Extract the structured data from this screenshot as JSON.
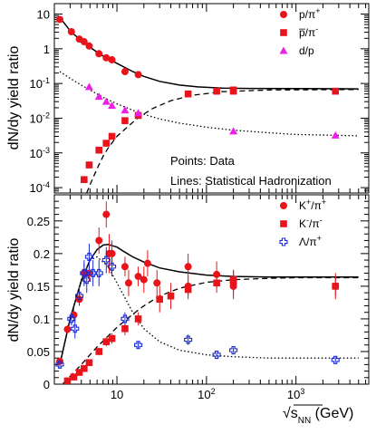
{
  "chart_data": [
    {
      "id": "top",
      "type": "scatter",
      "yscale": "log",
      "xscale": "log",
      "ylabel": "dN/dy yield ratio",
      "xlim": [
        2,
        6500
      ],
      "ylim": [
        7e-05,
        20
      ],
      "y_ticks": [
        {
          "value": 0.0001,
          "base": "10",
          "exp": "-4"
        },
        {
          "value": 0.001,
          "base": "10",
          "exp": "-3"
        },
        {
          "value": 0.01,
          "base": "10",
          "exp": "-2"
        },
        {
          "value": 0.1,
          "base": "10",
          "exp": "-1"
        },
        {
          "value": 1,
          "base": "1",
          "exp": ""
        },
        {
          "value": 10,
          "base": "10",
          "exp": ""
        }
      ],
      "legend": [
        {
          "label": "p/π",
          "sup": "+",
          "marker": "circle",
          "color": "#e8141b"
        },
        {
          "label": "p̅/π",
          "sup": "-",
          "marker": "square",
          "color": "#e8141b"
        },
        {
          "label": "d/p",
          "sup": "",
          "marker": "triangle",
          "color": "#ee1ee6"
        }
      ],
      "annotations": [
        "Points: Data",
        "Lines: Statistical Hadronization"
      ],
      "series": [
        {
          "name": "p/π+",
          "marker": "circle",
          "color": "#e8141b",
          "x": [
            2.3,
            3.1,
            3.8,
            4.3,
            4.9,
            6.3,
            7.6,
            8.8,
            12.3,
            17.3
          ],
          "y": [
            7.0,
            3.1,
            1.9,
            1.6,
            1.2,
            0.72,
            0.55,
            0.48,
            0.22,
            0.18
          ]
        },
        {
          "name": "p̅/π-",
          "marker": "square",
          "color": "#e8141b",
          "x": [
            4.3,
            4.9,
            6.3,
            7.6,
            8.8,
            12.3,
            17.3,
            62.4,
            130,
            200,
            200,
            2760
          ],
          "y": [
            0.00017,
            0.00045,
            0.0012,
            0.0019,
            0.003,
            0.0085,
            0.012,
            0.05,
            0.06,
            0.065,
            0.06,
            0.06
          ]
        },
        {
          "name": "d/p",
          "marker": "triangle",
          "color": "#ee1ee6",
          "x": [
            4.9,
            6.3,
            7.6,
            8.8,
            12.3,
            17.3,
            200,
            2760
          ],
          "y": [
            0.08,
            0.042,
            0.03,
            0.023,
            0.017,
            0.014,
            0.0042,
            0.0032
          ]
        }
      ],
      "curves": [
        {
          "name": "p/π+ model",
          "style": "solid",
          "x": [
            2.3,
            3,
            4,
            5,
            7,
            10,
            15,
            20,
            30,
            50,
            80,
            150,
            300,
            1000,
            5000
          ],
          "y": [
            8,
            3.3,
            1.7,
            1.1,
            0.62,
            0.38,
            0.22,
            0.16,
            0.115,
            0.09,
            0.08,
            0.074,
            0.072,
            0.071,
            0.07
          ]
        },
        {
          "name": "p̅/π- model",
          "style": "dashed",
          "x": [
            4.6,
            5,
            6,
            7,
            8,
            10,
            13,
            17,
            25,
            40,
            70,
            150,
            500,
            5000
          ],
          "y": [
            7e-05,
            0.00012,
            0.00035,
            0.0008,
            0.0014,
            0.003,
            0.0055,
            0.01,
            0.019,
            0.032,
            0.046,
            0.058,
            0.065,
            0.067
          ]
        },
        {
          "name": "d/p model",
          "style": "dotted",
          "x": [
            2.3,
            3,
            4,
            5,
            7,
            10,
            15,
            20,
            30,
            50,
            100,
            200,
            500,
            1000,
            5000
          ],
          "y": [
            0.22,
            0.14,
            0.09,
            0.065,
            0.04,
            0.026,
            0.017,
            0.013,
            0.0095,
            0.0072,
            0.0055,
            0.0045,
            0.0038,
            0.0034,
            0.0031
          ]
        }
      ]
    },
    {
      "id": "bottom",
      "type": "scatter",
      "yscale": "linear",
      "xscale": "log",
      "ylabel": "dN/dy yield ratio",
      "xlabel_parts": {
        "sqrt_symbol": "√",
        "s": "s",
        "sub": "NN",
        "unit": " (GeV)"
      },
      "xlim": [
        2,
        6500
      ],
      "ylim": [
        0,
        0.29
      ],
      "y_ticks": [
        {
          "value": 0,
          "label": "0"
        },
        {
          "value": 0.05,
          "label": "0.05"
        },
        {
          "value": 0.1,
          "label": "0.1"
        },
        {
          "value": 0.15,
          "label": "0.15"
        },
        {
          "value": 0.2,
          "label": "0.2"
        },
        {
          "value": 0.25,
          "label": "0.25"
        }
      ],
      "x_ticks": [
        {
          "value": 10,
          "base": "10",
          "exp": ""
        },
        {
          "value": 100,
          "base": "10",
          "exp": "2"
        },
        {
          "value": 1000,
          "base": "10",
          "exp": "3"
        }
      ],
      "legend": [
        {
          "label": "K",
          "sup": "+",
          "tail": "/π",
          "sup2": "+",
          "marker": "circle",
          "color": "#e8141b"
        },
        {
          "label": "K",
          "sup": "-",
          "tail": "/π",
          "sup2": "-",
          "marker": "square",
          "color": "#e8141b"
        },
        {
          "label": "Λ/π",
          "sup": "+",
          "tail": "",
          "sup2": "",
          "marker": "cross",
          "color": "#1a2bd6"
        }
      ],
      "series": [
        {
          "name": "K+/π+",
          "marker": "circle",
          "color": "#e8141b",
          "x": [
            2.3,
            2.8,
            3.3,
            3.8,
            4.3,
            4.9,
            6.3,
            7.6,
            8.2,
            8.8,
            12.3,
            13.5,
            17.3,
            20,
            22,
            28,
            62.4,
            62.4,
            130,
            200,
            200,
            2760
          ],
          "y": [
            0.035,
            0.084,
            0.106,
            0.13,
            0.17,
            0.17,
            0.22,
            0.26,
            0.2,
            0.2,
            0.18,
            0.155,
            0.165,
            0.16,
            0.185,
            0.155,
            0.18,
            0.15,
            0.168,
            0.155,
            0.15,
            0.15
          ],
          "err": [
            0.004,
            0.006,
            0.01,
            0.01,
            0.015,
            0.012,
            0.02,
            0.02,
            0.03,
            0.02,
            0.015,
            0.02,
            0.015,
            0.02,
            0.02,
            0.02,
            0.02,
            0.015,
            0.02,
            0.02,
            0.02,
            0.02
          ]
        },
        {
          "name": "K-/π-",
          "marker": "square",
          "color": "#e8141b",
          "x": [
            2.8,
            3.3,
            3.8,
            4.3,
            4.9,
            6.3,
            7.6,
            8.8,
            12.3,
            17.3,
            30,
            40,
            62.4,
            130,
            200,
            200,
            2760
          ],
          "y": [
            0.005,
            0.011,
            0.018,
            0.024,
            0.033,
            0.05,
            0.065,
            0.07,
            0.085,
            0.1,
            0.13,
            0.135,
            0.145,
            0.155,
            0.158,
            0.16,
            0.15
          ],
          "err": [
            0.002,
            0.003,
            0.003,
            0.004,
            0.005,
            0.006,
            0.007,
            0.008,
            0.01,
            0.01,
            0.02,
            0.02,
            0.015,
            0.015,
            0.015,
            0.015,
            0.015
          ]
        },
        {
          "name": "Λ/π+",
          "marker": "cross",
          "color": "#1a2bd6",
          "x": [
            2.3,
            3.1,
            3.4,
            3.8,
            4.3,
            4.6,
            4.9,
            5.4,
            6.3,
            7.6,
            8.8,
            12.3,
            17.3,
            62.4,
            130,
            200,
            2760
          ],
          "y": [
            0.03,
            0.1,
            0.085,
            0.135,
            0.17,
            0.16,
            0.195,
            0.17,
            0.17,
            0.19,
            0.18,
            0.1,
            0.06,
            0.068,
            0.045,
            0.052,
            0.037
          ],
          "err": [
            0.005,
            0.01,
            0.015,
            0.015,
            0.02,
            0.02,
            0.02,
            0.02,
            0.02,
            0.02,
            0.015,
            0.01,
            0.005,
            0.008,
            0.004,
            0.004,
            0.004
          ]
        }
      ],
      "curves": [
        {
          "name": "K+/π+ model",
          "style": "solid",
          "x": [
            2.3,
            3,
            4,
            5,
            6,
            7,
            8,
            10,
            12,
            15,
            20,
            30,
            50,
            100,
            200,
            500,
            1000,
            5000
          ],
          "y": [
            0.03,
            0.1,
            0.158,
            0.19,
            0.206,
            0.213,
            0.214,
            0.21,
            0.203,
            0.195,
            0.187,
            0.178,
            0.172,
            0.167,
            0.165,
            0.164,
            0.164,
            0.164
          ]
        },
        {
          "name": "K-/π- model",
          "style": "dashed",
          "x": [
            2.5,
            3,
            4,
            5,
            6,
            8,
            10,
            15,
            20,
            30,
            50,
            100,
            200,
            500,
            1000,
            5000
          ],
          "y": [
            0.001,
            0.012,
            0.03,
            0.045,
            0.057,
            0.074,
            0.087,
            0.107,
            0.12,
            0.135,
            0.147,
            0.156,
            0.16,
            0.162,
            0.163,
            0.163
          ]
        },
        {
          "name": "Λ/π+ model",
          "style": "dotted",
          "x": [
            2.3,
            3,
            4,
            5,
            6,
            8,
            10,
            15,
            20,
            30,
            50,
            100,
            200,
            500,
            1000,
            5000
          ],
          "y": [
            0.03,
            0.1,
            0.16,
            0.19,
            0.195,
            0.18,
            0.155,
            0.11,
            0.085,
            0.065,
            0.052,
            0.045,
            0.042,
            0.04,
            0.04,
            0.04
          ]
        }
      ]
    }
  ]
}
